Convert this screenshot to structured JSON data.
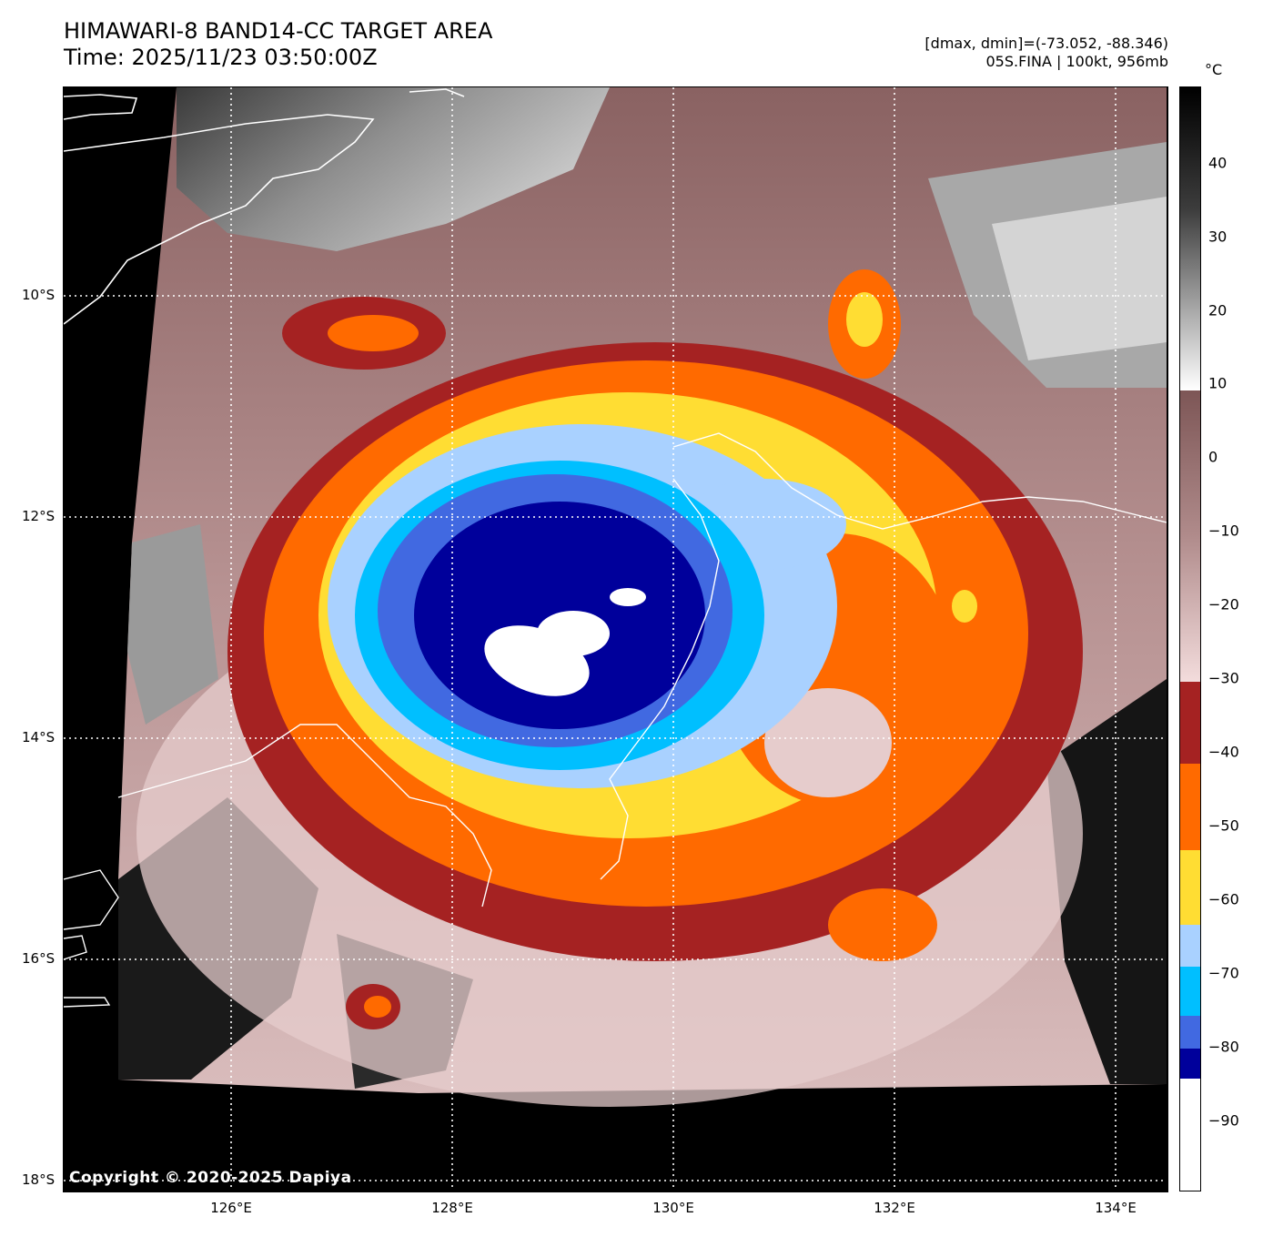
{
  "header": {
    "title_line1": "HIMAWARI-8 BAND14-CC TARGET AREA",
    "title_line2": "Time: 2025/11/23 03:50:00Z",
    "info_line1": "[dmax, dmin]=(-73.052, -88.346)",
    "info_line2": "05S.FINA | 100kt, 956mb"
  },
  "map": {
    "lat_labels": [
      "10°S",
      "12°S",
      "14°S",
      "16°S",
      "18°S"
    ],
    "lon_labels": [
      "126°E",
      "128°E",
      "130°E",
      "132°E",
      "134°E"
    ],
    "copyright": "Copyright © 2020-2025 Dapiya",
    "storm_center": {
      "lat": -12.9,
      "lon": 129.1
    }
  },
  "colorbar": {
    "unit": "°C",
    "ticks": [
      "40",
      "30",
      "20",
      "10",
      "0",
      "−10",
      "−20",
      "−30",
      "−40",
      "−50",
      "−60",
      "−70",
      "−80",
      "−90"
    ],
    "colors": {
      "gray_warm": "#000000",
      "gray_cold": "#ffffff",
      "pink_light": "#f3dcdc",
      "pink_dark": "#7d5656",
      "red": "#a52222",
      "orange": "#ff6a00",
      "yellow": "#ffdd33",
      "light_blue": "#a9d1ff",
      "cyan": "#00bfff",
      "royal_blue": "#4169e1",
      "navy": "#00009b",
      "white": "#ffffff"
    }
  }
}
